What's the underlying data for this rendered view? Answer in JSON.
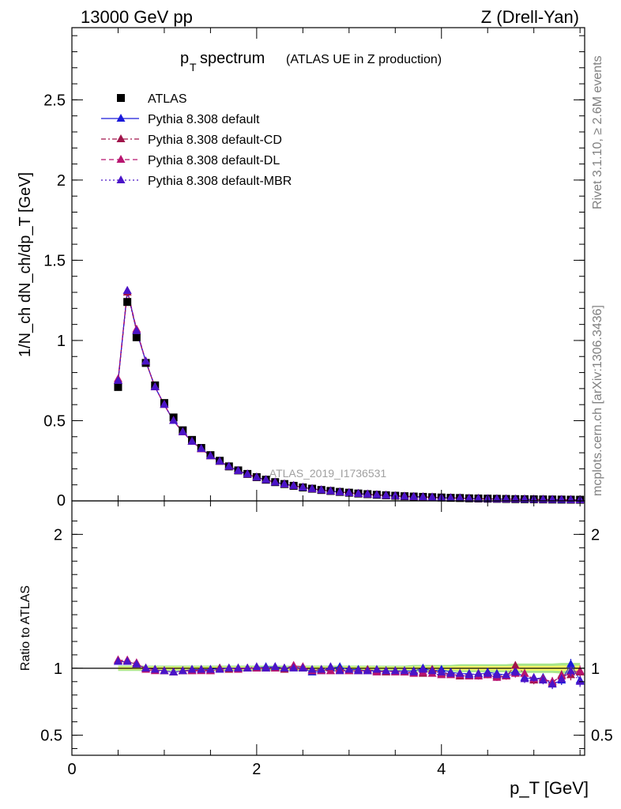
{
  "header": {
    "energy": "13000 GeV pp",
    "process": "Z (Drell-Yan)"
  },
  "side_labels": {
    "rivet": "Rivet 3.1.10, ≥ 2.6M events",
    "mcplots": "mcplots.cern.ch [arXiv:1306.3436]"
  },
  "colors": {
    "data": "#000000",
    "default": "#1a1adb",
    "default_cd": "#a0144a",
    "default_dl": "#b81470",
    "default_mbr": "#4a14c8",
    "band_stat": "#ffff66",
    "band_syst": "#a8e68c"
  },
  "chart_data": [
    {
      "type": "scatter",
      "panel": "main",
      "title": "p_T spectrum",
      "title_main": "p",
      "title_sub": "T",
      "title_rest": " spectrum",
      "title_note": "(ATLAS UE in Z production)",
      "ylabel": "1/N_ch dN_ch/dp_T [GeV]",
      "watermark": "ATLAS_2019_I1736531",
      "ylim": [
        0,
        2.95
      ],
      "xlim": [
        0,
        5.55
      ],
      "y_ticks": [
        "0.5",
        "1",
        "1.5",
        "2",
        "2.5"
      ],
      "y_tick_values": [
        0.5,
        1,
        1.5,
        2,
        2.5
      ],
      "y_bottom_label": "0",
      "legend_position": "top-left",
      "x": [
        0.5,
        0.6,
        0.7,
        0.8,
        0.9,
        1.0,
        1.1,
        1.2,
        1.3,
        1.4,
        1.5,
        1.6,
        1.7,
        1.8,
        1.9,
        2.0,
        2.1,
        2.2,
        2.3,
        2.4,
        2.5,
        2.6,
        2.7,
        2.8,
        2.9,
        3.0,
        3.1,
        3.2,
        3.3,
        3.4,
        3.5,
        3.6,
        3.7,
        3.8,
        3.9,
        4.0,
        4.1,
        4.2,
        4.3,
        4.4,
        4.5,
        4.6,
        4.7,
        4.8,
        4.9,
        5.0,
        5.1,
        5.2,
        5.3,
        5.4,
        5.5
      ],
      "series": [
        {
          "name": "ATLAS",
          "style": "data",
          "values": [
            0.71,
            1.24,
            1.02,
            0.86,
            0.72,
            0.61,
            0.52,
            0.44,
            0.38,
            0.33,
            0.285,
            0.25,
            0.215,
            0.19,
            0.168,
            0.148,
            0.132,
            0.117,
            0.105,
            0.094,
            0.084,
            0.076,
            0.068,
            0.062,
            0.056,
            0.051,
            0.046,
            0.042,
            0.038,
            0.035,
            0.032,
            0.029,
            0.027,
            0.025,
            0.023,
            0.021,
            0.019,
            0.018,
            0.016,
            0.015,
            0.014,
            0.013,
            0.012,
            0.011,
            0.0105,
            0.0098,
            0.0092,
            0.0086,
            0.0081,
            0.0076,
            0.0071
          ]
        },
        {
          "name": "Pythia 8.308 default",
          "style": "solid",
          "values": [
            0.75,
            1.31,
            1.06,
            0.87,
            0.71,
            0.6,
            0.5,
            0.43,
            0.37,
            0.325,
            0.28,
            0.246,
            0.214,
            0.188,
            0.166,
            0.147,
            0.131,
            0.116,
            0.104,
            0.094,
            0.084,
            0.075,
            0.068,
            0.061,
            0.055,
            0.05,
            0.045,
            0.041,
            0.037,
            0.034,
            0.031,
            0.028,
            0.026,
            0.024,
            0.022,
            0.02,
            0.018,
            0.017,
            0.015,
            0.014,
            0.013,
            0.012,
            0.011,
            0.0105,
            0.0097,
            0.009,
            0.0084,
            0.0078,
            0.0073,
            0.0068,
            0.0064
          ]
        },
        {
          "name": "Pythia 8.308 default-CD",
          "style": "dashdot",
          "values": [
            0.75,
            1.3,
            1.06,
            0.87,
            0.71,
            0.6,
            0.5,
            0.43,
            0.37,
            0.323,
            0.28,
            0.245,
            0.213,
            0.188,
            0.166,
            0.147,
            0.131,
            0.116,
            0.104,
            0.094,
            0.084,
            0.075,
            0.068,
            0.061,
            0.055,
            0.05,
            0.045,
            0.041,
            0.037,
            0.034,
            0.031,
            0.028,
            0.026,
            0.024,
            0.022,
            0.02,
            0.018,
            0.017,
            0.015,
            0.014,
            0.013,
            0.012,
            0.011,
            0.0105,
            0.0097,
            0.009,
            0.0084,
            0.0078,
            0.0073,
            0.0068,
            0.0064
          ]
        },
        {
          "name": "Pythia 8.308 default-DL",
          "style": "dashed",
          "values": [
            0.76,
            1.31,
            1.07,
            0.87,
            0.71,
            0.6,
            0.5,
            0.43,
            0.37,
            0.324,
            0.28,
            0.246,
            0.214,
            0.188,
            0.166,
            0.147,
            0.131,
            0.116,
            0.104,
            0.094,
            0.084,
            0.075,
            0.068,
            0.061,
            0.055,
            0.05,
            0.045,
            0.041,
            0.037,
            0.034,
            0.031,
            0.028,
            0.026,
            0.024,
            0.022,
            0.02,
            0.018,
            0.017,
            0.015,
            0.014,
            0.013,
            0.012,
            0.011,
            0.0105,
            0.0097,
            0.009,
            0.0084,
            0.0078,
            0.0073,
            0.0068,
            0.0064
          ]
        },
        {
          "name": "Pythia 8.308 default-MBR",
          "style": "dotted",
          "values": [
            0.75,
            1.31,
            1.06,
            0.87,
            0.71,
            0.6,
            0.5,
            0.43,
            0.37,
            0.325,
            0.28,
            0.246,
            0.214,
            0.188,
            0.166,
            0.147,
            0.131,
            0.116,
            0.104,
            0.094,
            0.084,
            0.075,
            0.068,
            0.061,
            0.055,
            0.05,
            0.045,
            0.041,
            0.037,
            0.034,
            0.031,
            0.028,
            0.026,
            0.024,
            0.022,
            0.02,
            0.018,
            0.017,
            0.015,
            0.014,
            0.013,
            0.012,
            0.011,
            0.0105,
            0.0097,
            0.009,
            0.0084,
            0.0078,
            0.0073,
            0.0068,
            0.0064
          ]
        }
      ]
    },
    {
      "type": "scatter",
      "panel": "ratio",
      "ylabel": "Ratio to ATLAS",
      "xlabel": "p_T [GeV]",
      "ylim": [
        0.35,
        2.25
      ],
      "xlim": [
        0,
        5.55
      ],
      "y_ticks": [
        "0.5",
        "1",
        "2"
      ],
      "y_tick_values": [
        0.5,
        1,
        2
      ],
      "x_ticks": [
        "0",
        "2",
        "4"
      ],
      "x_tick_values": [
        0,
        2,
        4
      ],
      "reference": 1,
      "band_halfwidth": [
        0.02,
        0.02,
        0.02,
        0.02,
        0.02,
        0.02,
        0.02,
        0.02,
        0.02,
        0.02,
        0.02,
        0.02,
        0.02,
        0.02,
        0.02,
        0.02,
        0.02,
        0.02,
        0.02,
        0.02,
        0.02,
        0.02,
        0.02,
        0.02,
        0.02,
        0.02,
        0.02,
        0.02,
        0.02,
        0.02,
        0.02,
        0.02,
        0.025,
        0.025,
        0.025,
        0.025,
        0.025,
        0.03,
        0.03,
        0.03,
        0.03,
        0.03,
        0.03,
        0.035,
        0.035,
        0.035,
        0.035,
        0.035,
        0.04,
        0.04,
        0.04
      ],
      "x": [
        0.5,
        0.6,
        0.7,
        0.8,
        0.9,
        1.0,
        1.1,
        1.2,
        1.3,
        1.4,
        1.5,
        1.6,
        1.7,
        1.8,
        1.9,
        2.0,
        2.1,
        2.2,
        2.3,
        2.4,
        2.5,
        2.6,
        2.7,
        2.8,
        2.9,
        3.0,
        3.1,
        3.2,
        3.3,
        3.4,
        3.5,
        3.6,
        3.7,
        3.8,
        3.9,
        4.0,
        4.1,
        4.2,
        4.3,
        4.4,
        4.5,
        4.6,
        4.7,
        4.8,
        4.9,
        5.0,
        5.1,
        5.2,
        5.3,
        5.4,
        5.5
      ],
      "series": [
        {
          "name": "Pythia 8.308 default",
          "style": "solid",
          "values": [
            1.05,
            1.05,
            1.03,
            1.0,
            0.99,
            0.98,
            0.97,
            0.98,
            0.99,
            0.99,
            0.99,
            1.0,
            1.0,
            1.0,
            1.0,
            1.0,
            1.01,
            1.01,
            1.0,
            1.01,
            1.0,
            0.97,
            0.98,
            1.0,
            1.01,
            0.99,
            0.99,
            0.98,
            0.98,
            0.98,
            0.98,
            0.98,
            0.98,
            1.0,
            0.98,
            0.99,
            0.97,
            0.96,
            0.96,
            0.95,
            0.97,
            0.96,
            0.95,
            0.98,
            0.93,
            0.92,
            0.93,
            0.88,
            0.91,
            1.03,
            0.91
          ],
          "errors": [
            0.01,
            0.01,
            0.01,
            0.01,
            0.01,
            0.01,
            0.01,
            0.01,
            0.01,
            0.01,
            0.01,
            0.01,
            0.01,
            0.01,
            0.01,
            0.01,
            0.01,
            0.01,
            0.01,
            0.01,
            0.01,
            0.01,
            0.01,
            0.01,
            0.01,
            0.01,
            0.01,
            0.015,
            0.015,
            0.015,
            0.015,
            0.015,
            0.02,
            0.02,
            0.02,
            0.02,
            0.02,
            0.02,
            0.02,
            0.025,
            0.025,
            0.025,
            0.025,
            0.03,
            0.03,
            0.03,
            0.03,
            0.035,
            0.035,
            0.04,
            0.04
          ]
        },
        {
          "name": "Pythia 8.308 default-CD",
          "style": "dashdot",
          "values": [
            1.06,
            1.05,
            1.03,
            1.0,
            0.99,
            0.98,
            0.97,
            0.98,
            0.98,
            0.99,
            0.98,
            1.0,
            0.99,
            1.0,
            1.0,
            1.0,
            1.0,
            1.0,
            0.99,
            1.01,
            1.0,
            0.98,
            0.99,
            0.98,
            0.99,
            0.98,
            0.98,
            0.99,
            0.98,
            0.97,
            0.98,
            0.97,
            0.97,
            0.96,
            0.99,
            0.96,
            0.96,
            0.94,
            0.95,
            0.96,
            0.95,
            0.94,
            0.94,
            1.02,
            0.96,
            0.91,
            0.92,
            0.89,
            0.95,
            0.95,
            0.97
          ],
          "errors": [
            0.01,
            0.01,
            0.01,
            0.01,
            0.01,
            0.01,
            0.01,
            0.01,
            0.01,
            0.01,
            0.01,
            0.01,
            0.01,
            0.01,
            0.01,
            0.01,
            0.01,
            0.01,
            0.01,
            0.01,
            0.01,
            0.01,
            0.01,
            0.01,
            0.01,
            0.01,
            0.01,
            0.015,
            0.015,
            0.015,
            0.015,
            0.015,
            0.02,
            0.02,
            0.02,
            0.02,
            0.02,
            0.02,
            0.02,
            0.025,
            0.025,
            0.025,
            0.025,
            0.03,
            0.03,
            0.03,
            0.03,
            0.035,
            0.035,
            0.04,
            0.04
          ]
        },
        {
          "name": "Pythia 8.308 default-DL",
          "style": "dashed",
          "values": [
            1.06,
            1.06,
            1.04,
            0.99,
            0.98,
            0.98,
            0.97,
            0.98,
            0.98,
            0.98,
            0.98,
            0.99,
            1.0,
            0.99,
            1.0,
            1.0,
            1.0,
            1.0,
            1.0,
            1.02,
            1.01,
            0.98,
            0.98,
            0.98,
            0.98,
            0.98,
            0.98,
            0.98,
            0.97,
            0.98,
            0.97,
            0.97,
            0.96,
            0.97,
            0.96,
            0.95,
            0.95,
            0.95,
            0.94,
            0.94,
            0.95,
            0.93,
            0.94,
            0.96,
            0.96,
            0.92,
            0.92,
            0.9,
            0.94,
            0.97,
            0.98
          ],
          "errors": [
            0.01,
            0.01,
            0.01,
            0.01,
            0.01,
            0.01,
            0.01,
            0.01,
            0.01,
            0.01,
            0.01,
            0.01,
            0.01,
            0.01,
            0.01,
            0.01,
            0.01,
            0.01,
            0.01,
            0.01,
            0.01,
            0.01,
            0.01,
            0.01,
            0.01,
            0.01,
            0.01,
            0.015,
            0.015,
            0.015,
            0.015,
            0.015,
            0.02,
            0.02,
            0.02,
            0.02,
            0.02,
            0.02,
            0.02,
            0.025,
            0.025,
            0.025,
            0.025,
            0.03,
            0.03,
            0.03,
            0.03,
            0.035,
            0.035,
            0.04,
            0.04
          ]
        },
        {
          "name": "Pythia 8.308 default-MBR",
          "style": "dotted",
          "values": [
            1.05,
            1.05,
            1.03,
            1.0,
            0.99,
            0.98,
            0.97,
            0.98,
            0.99,
            0.99,
            0.99,
            0.99,
            1.0,
            1.0,
            1.0,
            1.01,
            1.0,
            1.01,
            1.0,
            1.0,
            1.0,
            0.99,
            0.99,
            1.01,
            0.98,
            0.99,
            0.98,
            0.98,
            0.99,
            0.98,
            0.98,
            0.98,
            0.97,
            0.99,
            0.98,
            0.97,
            0.96,
            0.96,
            0.95,
            0.96,
            0.96,
            0.95,
            0.95,
            0.97,
            0.92,
            0.93,
            0.91,
            0.88,
            0.92,
            0.98,
            0.9
          ],
          "errors": [
            0.01,
            0.01,
            0.01,
            0.01,
            0.01,
            0.01,
            0.01,
            0.01,
            0.01,
            0.01,
            0.01,
            0.01,
            0.01,
            0.01,
            0.01,
            0.01,
            0.01,
            0.01,
            0.01,
            0.01,
            0.01,
            0.01,
            0.01,
            0.01,
            0.01,
            0.01,
            0.01,
            0.015,
            0.015,
            0.015,
            0.015,
            0.015,
            0.02,
            0.02,
            0.02,
            0.02,
            0.02,
            0.02,
            0.02,
            0.025,
            0.025,
            0.025,
            0.025,
            0.03,
            0.03,
            0.03,
            0.03,
            0.035,
            0.035,
            0.04,
            0.04
          ]
        }
      ]
    }
  ]
}
